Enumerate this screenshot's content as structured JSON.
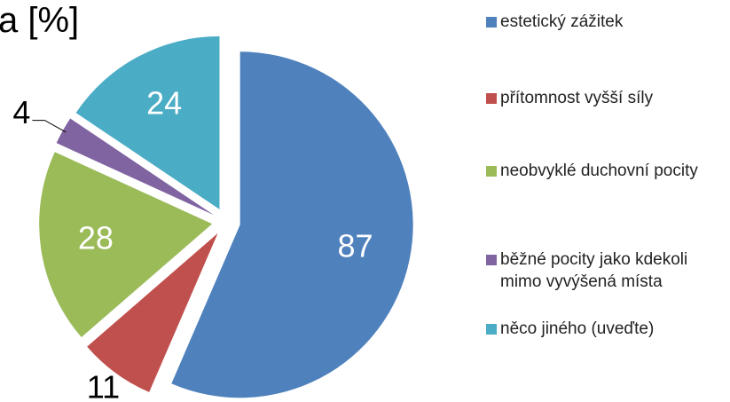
{
  "chart_data": {
    "type": "pie",
    "title": "a [%]",
    "categories": [
      "estetický zážitek",
      "přítomnost vyšší síly",
      "neobvyklé duchovní pocity",
      "běžné pocity jako kdekoli mimo vyvýšená místa",
      "něco jiného (uveďte)"
    ],
    "values": [
      87,
      11,
      28,
      4,
      24
    ],
    "colors": [
      "#4f81bd",
      "#c0504d",
      "#9bbb59",
      "#8064a2",
      "#4bacc6"
    ],
    "legend": "right"
  }
}
